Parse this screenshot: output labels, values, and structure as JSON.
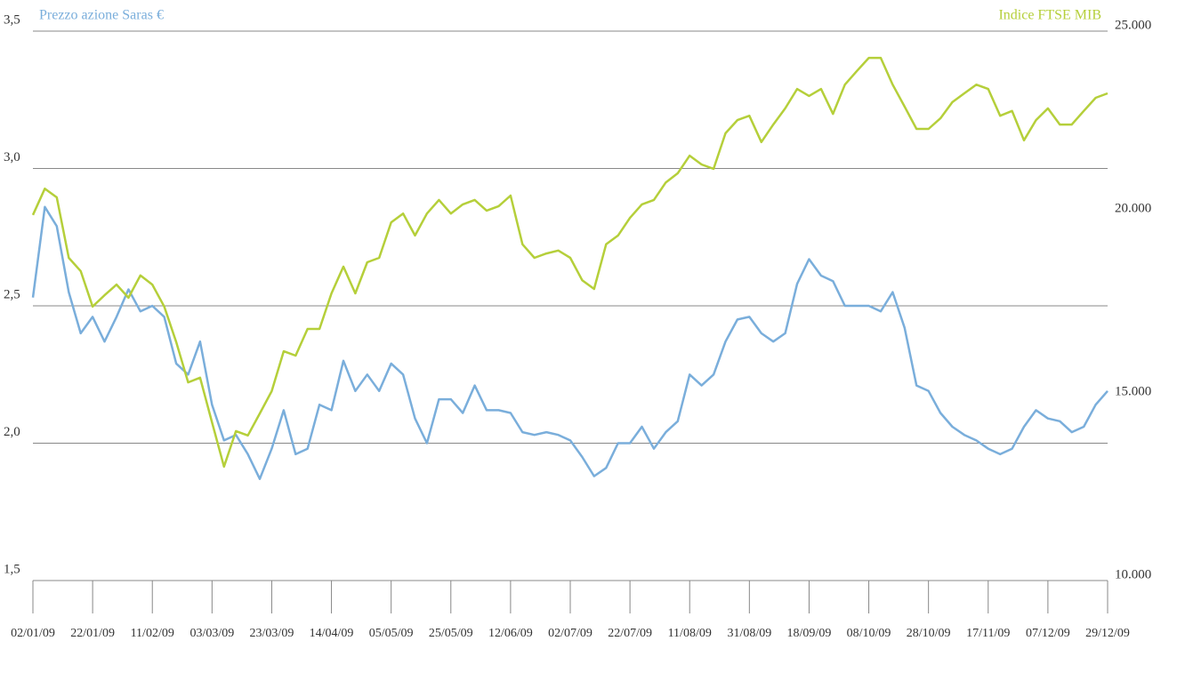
{
  "chart_data": {
    "type": "line",
    "categories": [
      "02/01/09",
      null,
      null,
      null,
      null,
      "22/01/09",
      null,
      null,
      null,
      null,
      "11/02/09",
      null,
      null,
      null,
      null,
      "03/03/09",
      null,
      null,
      null,
      null,
      "23/03/09",
      null,
      null,
      null,
      null,
      "14/04/09",
      null,
      null,
      null,
      null,
      "05/05/09",
      null,
      null,
      null,
      null,
      "25/05/09",
      null,
      null,
      null,
      null,
      "12/06/09",
      null,
      null,
      null,
      null,
      "02/07/09",
      null,
      null,
      null,
      null,
      "22/07/09",
      null,
      null,
      null,
      null,
      "11/08/09",
      null,
      null,
      null,
      null,
      "31/08/09",
      null,
      null,
      null,
      null,
      "18/09/09",
      null,
      null,
      null,
      null,
      "08/10/09",
      null,
      null,
      null,
      null,
      "28/10/09",
      null,
      null,
      null,
      null,
      "17/11/09",
      null,
      null,
      null,
      null,
      "07/12/09",
      null,
      null,
      null,
      null,
      "29/12/09"
    ],
    "series": [
      {
        "name": "Prezzo azione Saras €",
        "color": "#7aaedb",
        "axis": "y",
        "values": [
          2.53,
          2.86,
          2.79,
          2.55,
          2.4,
          2.46,
          2.37,
          2.46,
          2.56,
          2.48,
          2.5,
          2.46,
          2.29,
          2.25,
          2.37,
          2.14,
          2.01,
          2.03,
          1.96,
          1.87,
          1.98,
          2.12,
          1.96,
          1.98,
          2.14,
          2.12,
          2.3,
          2.19,
          2.25,
          2.19,
          2.29,
          2.25,
          2.09,
          2.0,
          2.16,
          2.16,
          2.11,
          2.21,
          2.12,
          2.12,
          2.11,
          2.04,
          2.03,
          2.04,
          2.03,
          2.01,
          1.95,
          1.88,
          1.91,
          2.0,
          2.0,
          2.06,
          1.98,
          2.04,
          2.08,
          2.25,
          2.21,
          2.25,
          2.37,
          2.45,
          2.46,
          2.4,
          2.37,
          2.4,
          2.58,
          2.67,
          2.61,
          2.59,
          2.5,
          2.5,
          2.5,
          2.48,
          2.55,
          2.42,
          2.21,
          2.19,
          2.11,
          2.06,
          2.03,
          2.01,
          1.98,
          1.96,
          1.98,
          2.06,
          2.12,
          2.09,
          2.08,
          2.04,
          2.06,
          2.14,
          2.19
        ]
      },
      {
        "name": "Indice FTSE MIB",
        "color": "#b5cf3a",
        "axis": "y2",
        "values": [
          19980,
          20700,
          20460,
          18810,
          18450,
          17480,
          17790,
          18080,
          17720,
          18330,
          18080,
          17480,
          16510,
          15410,
          15540,
          14320,
          13110,
          14080,
          13960,
          14560,
          15170,
          16260,
          16140,
          16870,
          16870,
          17840,
          18570,
          17840,
          18690,
          18810,
          19780,
          20020,
          19420,
          20020,
          20390,
          20020,
          20270,
          20390,
          20100,
          20220,
          20510,
          19180,
          18810,
          18930,
          19010,
          18810,
          18200,
          17960,
          19180,
          19420,
          19900,
          20270,
          20390,
          20870,
          21120,
          21600,
          21360,
          21240,
          22210,
          22570,
          22690,
          21970,
          22450,
          22890,
          23420,
          23230,
          23420,
          22740,
          23540,
          23910,
          24270,
          24270,
          23540,
          22940,
          22330,
          22330,
          22620,
          23060,
          23300,
          23540,
          23420,
          22690,
          22820,
          22020,
          22570,
          22890,
          22450,
          22450,
          22820,
          23180,
          23300
        ]
      }
    ],
    "ylim": [
      1.5,
      3.5
    ],
    "yticks": [
      {
        "value": 1.5,
        "label": "1,5"
      },
      {
        "value": 2.0,
        "label": "2,0"
      },
      {
        "value": 2.5,
        "label": "2,5"
      },
      {
        "value": 3.0,
        "label": "3,0"
      },
      {
        "value": 3.5,
        "label": "3,5"
      }
    ],
    "y2lim": [
      10000,
      25000
    ],
    "y2ticks": [
      {
        "value": 10000,
        "label": "10.000"
      },
      {
        "value": 15000,
        "label": "15.000"
      },
      {
        "value": 20000,
        "label": "20.000"
      },
      {
        "value": 25000,
        "label": "25.000"
      }
    ],
    "grid": true
  }
}
